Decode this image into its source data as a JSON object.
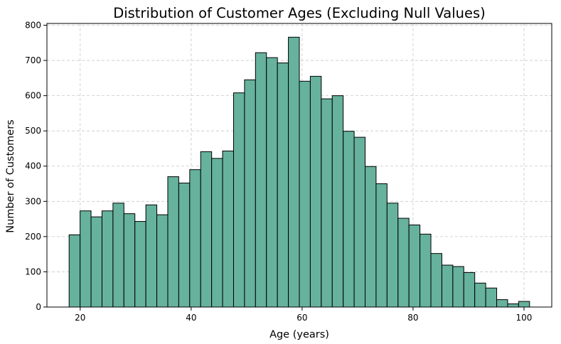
{
  "chart_data": {
    "type": "bar",
    "title": "Distribution of Customer Ages (Excluding Null Values)",
    "xlabel": "Age (years)",
    "ylabel": "Number of Customers",
    "bin_start": 18,
    "bin_end": 101,
    "values": [
      205,
      273,
      256,
      273,
      295,
      265,
      243,
      290,
      262,
      370,
      352,
      390,
      441,
      422,
      443,
      608,
      645,
      722,
      708,
      693,
      766,
      641,
      655,
      591,
      600,
      499,
      482,
      399,
      350,
      295,
      252,
      233,
      207,
      152,
      119,
      115,
      98,
      68,
      54,
      21,
      9,
      16
    ],
    "xlim": [
      14.0,
      105.0
    ],
    "ylim": [
      0,
      805
    ],
    "xticks": [
      "20",
      "40",
      "60",
      "80",
      "100"
    ],
    "xtick_values": [
      20,
      40,
      60,
      80,
      100
    ],
    "yticks": [
      "0",
      "100",
      "200",
      "300",
      "400",
      "500",
      "600",
      "700",
      "800"
    ],
    "ytick_values": [
      0,
      100,
      200,
      300,
      400,
      500,
      600,
      700,
      800
    ],
    "grid": true,
    "bar_color": "#66b29c",
    "edge_color": "#000000"
  }
}
